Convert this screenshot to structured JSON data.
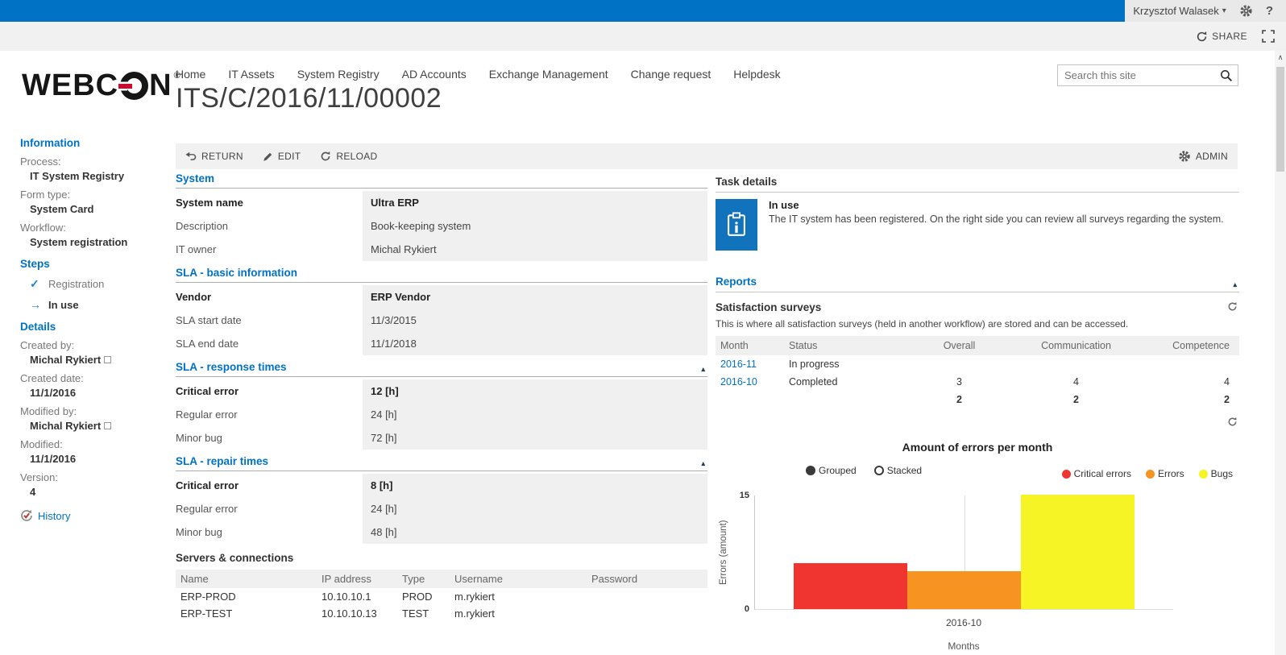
{
  "icons": {
    "caret_down": "▾",
    "collapse": "▴",
    "check": "✓",
    "arrow_right": "→",
    "scroll_up": "∧",
    "registered": "®"
  },
  "suite_bar": {
    "user_name": "Krzysztof Walasek",
    "help_label": "?"
  },
  "ribbon": {
    "share_label": "SHARE"
  },
  "header": {
    "logo_part1": "WEBC",
    "logo_part2": "N",
    "nav": [
      "Home",
      "IT Assets",
      "System Registry",
      "AD Accounts",
      "Exchange Management",
      "Change request",
      "Helpdesk"
    ],
    "title": "ITS/C/2016/11/00002",
    "search_placeholder": "Search this site"
  },
  "sidebar": {
    "information_heading": "Information",
    "info_fields": [
      {
        "label": "Process:",
        "value": "IT System Registry"
      },
      {
        "label": "Form type:",
        "value": "System Card"
      },
      {
        "label": "Workflow:",
        "value": "System registration"
      }
    ],
    "steps_heading": "Steps",
    "steps": [
      {
        "label": "Registration"
      },
      {
        "label": "In use"
      }
    ],
    "details_heading": "Details",
    "detail_fields": [
      {
        "label": "Created by:",
        "value": "Michal Rykiert",
        "presence": true
      },
      {
        "label": "Created date:",
        "value": "11/1/2016"
      },
      {
        "label": "Modified by:",
        "value": "Michal Rykiert",
        "presence": true
      },
      {
        "label": "Modified:",
        "value": "11/1/2016"
      },
      {
        "label": "Version:",
        "value": "4"
      }
    ],
    "history_label": "History"
  },
  "toolbar": {
    "return_label": "RETURN",
    "edit_label": "EDIT",
    "reload_label": "RELOAD",
    "admin_label": "ADMIN"
  },
  "form": {
    "sections": [
      {
        "title": "System",
        "rows": [
          {
            "label": "System name",
            "value": "Ultra ERP"
          },
          {
            "label": "Description",
            "value": "Book-keeping system"
          },
          {
            "label": "IT owner",
            "value": "Michal Rykiert"
          }
        ]
      },
      {
        "title": "SLA - basic information",
        "rows": [
          {
            "label": "Vendor",
            "value": "ERP Vendor"
          },
          {
            "label": "SLA start date",
            "value": "11/3/2015"
          },
          {
            "label": "SLA end date",
            "value": "11/1/2018"
          }
        ]
      },
      {
        "title": "SLA - response times",
        "rows": [
          {
            "label": "Critical error",
            "value": "12 [h]"
          },
          {
            "label": "Regular error",
            "value": "24 [h]"
          },
          {
            "label": "Minor bug",
            "value": "72 [h]"
          }
        ]
      },
      {
        "title": "SLA - repair times",
        "rows": [
          {
            "label": "Critical error",
            "value": "8 [h]"
          },
          {
            "label": "Regular error",
            "value": "24 [h]"
          },
          {
            "label": "Minor bug",
            "value": "48 [h]"
          }
        ]
      }
    ],
    "servers": {
      "title": "Servers & connections",
      "columns": [
        "Name",
        "IP address",
        "Type",
        "Username",
        "Password"
      ],
      "rows": [
        [
          "ERP-PROD",
          "10.10.10.1",
          "PROD",
          "m.rykiert",
          ""
        ],
        [
          "ERP-TEST",
          "10.10.10.13",
          "TEST",
          "m.rykiert",
          ""
        ]
      ]
    }
  },
  "task_details": {
    "title": "Task details",
    "step_name": "In use",
    "description": "The IT system has been registered. On the right side you can review all surveys regarding the system."
  },
  "reports": {
    "title": "Reports",
    "surveys": {
      "title": "Satisfaction surveys",
      "description": "This is where all satisfaction surveys (held in another workflow) are stored and can be accessed.",
      "columns": [
        "Month",
        "Status",
        "Overall",
        "Communication",
        "Competence"
      ],
      "rows": [
        [
          "2016-11",
          "In progress",
          "",
          "",
          ""
        ],
        [
          "2016-10",
          "Completed",
          "3",
          "4",
          "4"
        ],
        [
          "",
          "",
          "2",
          "2",
          "2"
        ]
      ]
    }
  },
  "chart_data": {
    "type": "bar",
    "title": "Amount of errors per month",
    "mode_options": [
      "Grouped",
      "Stacked"
    ],
    "selected_mode": "Grouped",
    "categories": [
      "2016-10"
    ],
    "series": [
      {
        "name": "Critical errors",
        "values": [
          6
        ],
        "color": "#f0342f"
      },
      {
        "name": "Errors",
        "values": [
          5
        ],
        "color": "#f79421"
      },
      {
        "name": "Bugs",
        "values": [
          15
        ],
        "color": "#f7f425"
      }
    ],
    "xlabel": "Months",
    "ylabel": "Errors (amount)",
    "ylim": [
      0,
      15
    ],
    "yticks": [
      0,
      15
    ],
    "grid": true,
    "legend_position": "top-right"
  }
}
